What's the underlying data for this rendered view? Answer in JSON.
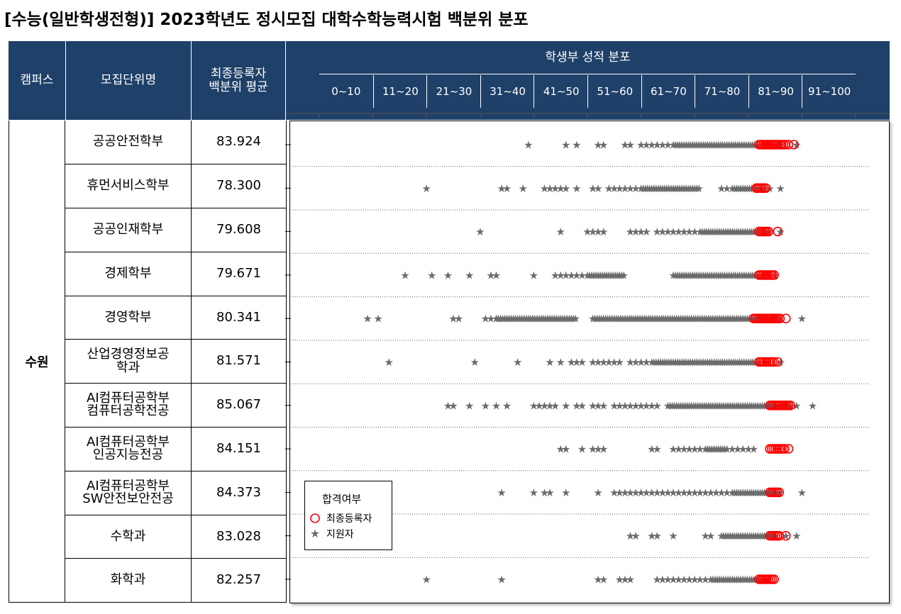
{
  "title": "[수능(일반학생전형)] 2023학년도 정시모집 대학수학능력시험 백분위 분포",
  "header": {
    "campus": "캠퍼스",
    "unit": "모집단위명",
    "avg": "최종등록자\n백분위 평균",
    "dist": "학생부 성적 분포",
    "ranges": [
      "0~10",
      "11~20",
      "21~30",
      "31~40",
      "41~50",
      "51~60",
      "61~70",
      "71~80",
      "81~90",
      "91~100"
    ]
  },
  "campus": "수원",
  "rows": [
    {
      "name": "공공안전학부",
      "avg": "83.924"
    },
    {
      "name": "휴먼서비스학부",
      "avg": "78.300"
    },
    {
      "name": "공공인재학부",
      "avg": "79.608"
    },
    {
      "name": "경제학부",
      "avg": "79.671"
    },
    {
      "name": "경영학부",
      "avg": "80.341"
    },
    {
      "name": "산업경영정보공\n학과",
      "avg": "81.571"
    },
    {
      "name": "AI컴퓨터공학부\n컴퓨터공학전공",
      "avg": "85.067"
    },
    {
      "name": "AI컴퓨터공학부\n인공지능전공",
      "avg": "84.151"
    },
    {
      "name": "AI컴퓨터공학부\nSW안전보안전공",
      "avg": "84.373"
    },
    {
      "name": "수학과",
      "avg": "83.028"
    },
    {
      "name": "화학과",
      "avg": "82.257"
    }
  ],
  "legend": {
    "title": "합격여부",
    "enrolled": "최종등록자",
    "applicant": "지원자"
  },
  "colors": {
    "header_bg": "#1f4068",
    "enrolled": "#ff0000",
    "applicant": "#6b6b6b"
  },
  "chart_data": {
    "type": "scatter",
    "x_range": [
      0,
      100
    ],
    "categories": [
      "공공안전학부",
      "휴먼서비스학부",
      "공공인재학부",
      "경제학부",
      "경영학부",
      "산업경영정보공학과",
      "AI컴퓨터공학부 컴퓨터공학전공",
      "AI컴퓨터공학부 인공지능전공",
      "AI컴퓨터공학부 SW안전보안전공",
      "수학과",
      "화학과"
    ],
    "series": [
      {
        "name": "지원자",
        "marker": "star",
        "rows": [
          {
            "dense": [
              [
                66,
                86
              ]
            ],
            "points": [
              39,
              46,
              48,
              52,
              53,
              57,
              58,
              60,
              61,
              62,
              63,
              64,
              65,
              89
            ]
          },
          {
            "dense": [
              [
                60,
                71
              ],
              [
                77,
                83
              ]
            ],
            "points": [
              20,
              34,
              35,
              38,
              42,
              43,
              44,
              45,
              46,
              48,
              51,
              52,
              54,
              55,
              56,
              57,
              58,
              59,
              75,
              76,
              84,
              86
            ]
          },
          {
            "dense": [
              [
                71,
                84
              ]
            ],
            "points": [
              30,
              45,
              50,
              51,
              52,
              53,
              58,
              59,
              60,
              61,
              63,
              64,
              65,
              66,
              67,
              68,
              69,
              70,
              86
            ]
          },
          {
            "dense": [
              [
                50,
                57
              ],
              [
                66,
                84
              ]
            ],
            "points": [
              16,
              21,
              24,
              28,
              32,
              33,
              40,
              44,
              45,
              46,
              47,
              48,
              49,
              85
            ]
          },
          {
            "dense": [
              [
                33,
                48
              ],
              [
                51,
                86
              ]
            ],
            "points": [
              9,
              11,
              25,
              26,
              31,
              32,
              33,
              90
            ]
          },
          {
            "dense": [
              [
                62,
                82
              ]
            ],
            "points": [
              13,
              29,
              37,
              43,
              45,
              47,
              48,
              49,
              51,
              52,
              53,
              54,
              55,
              56,
              58,
              59,
              60,
              61,
              83,
              86
            ]
          },
          {
            "dense": [
              [
                65,
                88
              ]
            ],
            "points": [
              24,
              25,
              28,
              31,
              33,
              35,
              40,
              41,
              42,
              43,
              44,
              46,
              48,
              49,
              51,
              52,
              53,
              55,
              56,
              57,
              58,
              59,
              60,
              61,
              62,
              63,
              89,
              92
            ]
          },
          {
            "dense": [
              [
                72,
                76
              ]
            ],
            "points": [
              45,
              46,
              49,
              51,
              52,
              53,
              62,
              63,
              66,
              67,
              68,
              69,
              70,
              71,
              77,
              78,
              79,
              80,
              81
            ]
          },
          {
            "dense": [
              [
                77,
                86
              ]
            ],
            "points": [
              34,
              40,
              42,
              43,
              46,
              52,
              55,
              56,
              57,
              58,
              59,
              60,
              61,
              62,
              63,
              64,
              65,
              66,
              67,
              68,
              69,
              70,
              71,
              72,
              73,
              74,
              75,
              76,
              90
            ]
          },
          {
            "dense": [
              [
                75,
                85
              ]
            ],
            "points": [
              58,
              59,
              62,
              63,
              66,
              72,
              73,
              87,
              89
            ]
          },
          {
            "dense": [
              [
                73,
                84
              ]
            ],
            "points": [
              20,
              34,
              52,
              53,
              56,
              57,
              58,
              63,
              64,
              65,
              66,
              67,
              68,
              69,
              70,
              71,
              72
            ]
          }
        ]
      },
      {
        "name": "최종등록자",
        "marker": "circle",
        "rows": [
          {
            "dense": [
              [
                82,
                87
              ]
            ],
            "points": [
              87.5,
              88.5
            ]
          },
          {
            "dense": [
              [
                81.5,
                83.5
              ]
            ],
            "points": []
          },
          {
            "dense": [
              [
                82,
                84
              ]
            ],
            "points": [
              85.5
            ]
          },
          {
            "dense": [
              [
                82,
                85
              ]
            ],
            "points": []
          },
          {
            "dense": [
              [
                81,
                86
              ]
            ],
            "points": [
              87
            ]
          },
          {
            "dense": [
              [
                82,
                85
              ]
            ],
            "points": [
              85.5
            ]
          },
          {
            "dense": [
              [
                84,
                88
              ]
            ],
            "points": []
          },
          {
            "dense": [
              [
                84,
                87
              ]
            ],
            "points": [
              87.5
            ]
          },
          {
            "dense": [
              [
                84,
                86
              ]
            ],
            "points": []
          },
          {
            "dense": [
              [
                84,
                86
              ]
            ],
            "points": [
              87
            ]
          },
          {
            "dense": [
              [
                82,
                85
              ]
            ],
            "points": []
          }
        ]
      }
    ]
  }
}
